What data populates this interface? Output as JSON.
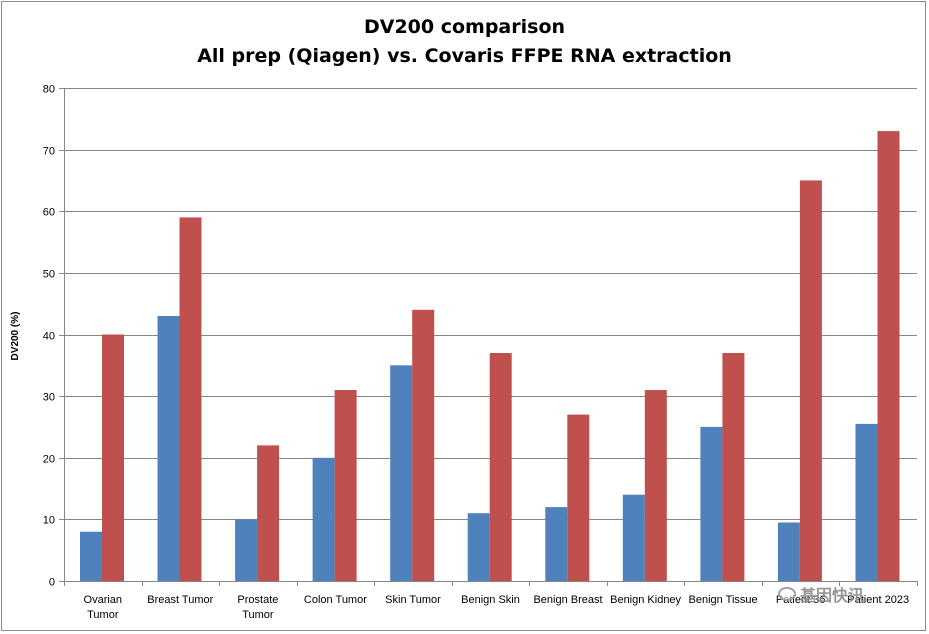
{
  "chart_data": {
    "type": "bar",
    "title": "DV200 comparison",
    "subtitle": "All prep (Qiagen) vs. Covaris FFPE RNA extraction",
    "xlabel": "",
    "ylabel": "DV200 (%)",
    "ylim": [
      0,
      80
    ],
    "yticks": [
      0,
      10,
      20,
      30,
      40,
      50,
      60,
      70,
      80
    ],
    "grid": true,
    "legend": "none",
    "categories": [
      [
        "Ovarian",
        "Tumor"
      ],
      [
        "Breast Tumor"
      ],
      [
        "Prostate",
        "Tumor"
      ],
      [
        "Colon Tumor"
      ],
      [
        "Skin Tumor"
      ],
      [
        "Benign Skin"
      ],
      [
        "Benign Breast"
      ],
      [
        "Benign Kidney"
      ],
      [
        "Benign Tissue"
      ],
      [
        "Patient 36"
      ],
      [
        "Patient 2023"
      ]
    ],
    "series": [
      {
        "color": "#4f81bd",
        "values": [
          8,
          43,
          10,
          20,
          35,
          11,
          12,
          14,
          25,
          9.5,
          25.5
        ]
      },
      {
        "color": "#c0504d",
        "values": [
          40,
          59,
          22,
          31,
          44,
          37,
          27,
          31,
          37,
          65,
          73
        ]
      }
    ]
  },
  "watermark": {
    "text": "基因快讯",
    "icon": "wechat-icon"
  }
}
